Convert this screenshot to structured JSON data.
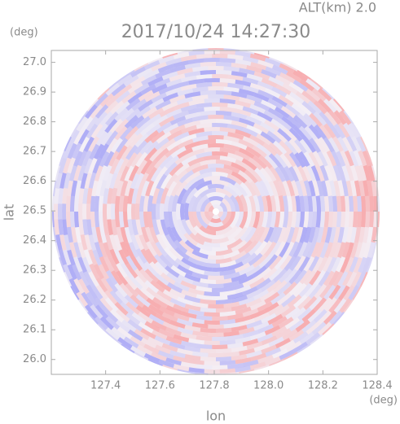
{
  "chart_data": {
    "type": "radar-ppi",
    "title": "2017/10/24 14:27:30",
    "subtitle": "ALT(km)  2.0",
    "x_label": "lon",
    "y_label": "lat",
    "x_unit": "(deg)",
    "y_unit": "(deg)",
    "xlim": [
      127.2,
      128.4
    ],
    "xticks": [
      127.4,
      127.6,
      127.8,
      {
        "value": 128.0,
        "label": "128.0"
      },
      128.2,
      128.4
    ],
    "ylim": [
      25.95,
      27.04
    ],
    "yticks": [
      {
        "value": 26.0,
        "label": "26.0"
      },
      26.1,
      26.2,
      26.3,
      26.4,
      26.5,
      26.6,
      26.7,
      26.8,
      26.9,
      {
        "value": 27.0,
        "label": "27.0"
      }
    ]
  }
}
